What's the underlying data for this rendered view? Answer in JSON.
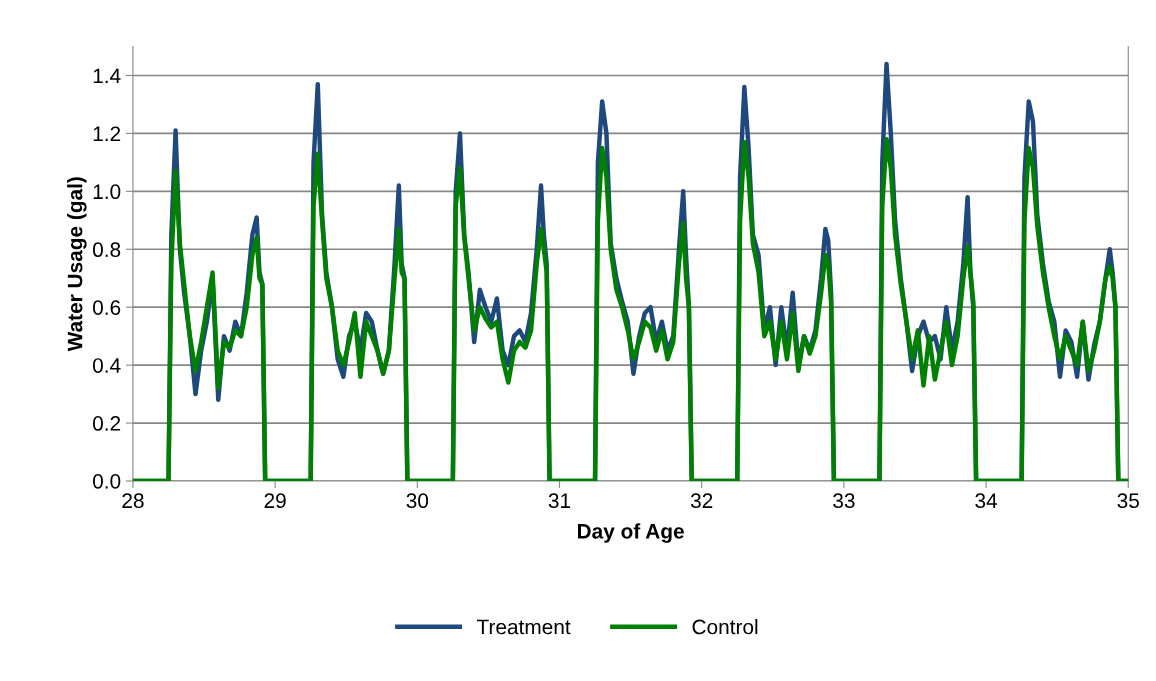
{
  "chart_data": {
    "type": "line",
    "xlabel": "Day of Age",
    "ylabel": "Water Usage (gal)",
    "x": [
      28,
      28.25,
      28.27,
      28.3,
      28.33,
      28.36,
      28.4,
      28.44,
      28.48,
      28.52,
      28.56,
      28.6,
      28.64,
      28.68,
      28.72,
      28.76,
      28.8,
      28.84,
      28.87,
      28.89,
      28.91,
      28.93,
      29.25,
      29.27,
      29.3,
      29.33,
      29.36,
      29.4,
      29.44,
      29.48,
      29.52,
      29.56,
      29.6,
      29.64,
      29.68,
      29.72,
      29.76,
      29.8,
      29.84,
      29.87,
      29.89,
      29.91,
      29.93,
      30.25,
      30.27,
      30.3,
      30.33,
      30.36,
      30.4,
      30.44,
      30.48,
      30.52,
      30.56,
      30.6,
      30.64,
      30.68,
      30.72,
      30.76,
      30.8,
      30.84,
      30.87,
      30.89,
      30.91,
      30.93,
      31.25,
      31.27,
      31.3,
      31.33,
      31.36,
      31.4,
      31.44,
      31.48,
      31.52,
      31.56,
      31.6,
      31.64,
      31.68,
      31.72,
      31.76,
      31.8,
      31.84,
      31.87,
      31.89,
      31.91,
      31.93,
      32.25,
      32.27,
      32.3,
      32.33,
      32.36,
      32.4,
      32.44,
      32.48,
      32.52,
      32.56,
      32.6,
      32.64,
      32.68,
      32.72,
      32.76,
      32.8,
      32.84,
      32.87,
      32.89,
      32.91,
      32.93,
      33.25,
      33.27,
      33.3,
      33.33,
      33.36,
      33.4,
      33.44,
      33.48,
      33.52,
      33.56,
      33.6,
      33.64,
      33.68,
      33.72,
      33.76,
      33.8,
      33.84,
      33.87,
      33.89,
      33.91,
      33.93,
      34.25,
      34.27,
      34.3,
      34.33,
      34.36,
      34.4,
      34.44,
      34.48,
      34.52,
      34.56,
      34.6,
      34.64,
      34.68,
      34.72,
      34.76,
      34.8,
      34.84,
      34.87,
      34.89,
      34.91,
      34.93,
      35
    ],
    "series": [
      {
        "name": "Treatment",
        "color": "#1f497d",
        "values": [
          0,
          0,
          0.85,
          1.21,
          0.8,
          0.65,
          0.5,
          0.3,
          0.45,
          0.55,
          0.7,
          0.28,
          0.5,
          0.45,
          0.55,
          0.5,
          0.65,
          0.85,
          0.91,
          0.72,
          0.68,
          0,
          0,
          1.1,
          1.37,
          0.92,
          0.72,
          0.6,
          0.42,
          0.36,
          0.5,
          0.55,
          0.45,
          0.58,
          0.55,
          0.45,
          0.37,
          0.45,
          0.75,
          1.02,
          0.75,
          0.7,
          0,
          0,
          1.0,
          1.2,
          0.85,
          0.72,
          0.48,
          0.66,
          0.6,
          0.55,
          0.63,
          0.45,
          0.4,
          0.5,
          0.52,
          0.48,
          0.58,
          0.8,
          1.02,
          0.85,
          0.75,
          0,
          0,
          1.1,
          1.31,
          1.2,
          0.82,
          0.7,
          0.62,
          0.55,
          0.37,
          0.5,
          0.58,
          0.6,
          0.48,
          0.55,
          0.45,
          0.5,
          0.8,
          1.0,
          0.78,
          0.6,
          0,
          0,
          1.05,
          1.36,
          1.15,
          0.85,
          0.78,
          0.52,
          0.6,
          0.4,
          0.6,
          0.45,
          0.65,
          0.4,
          0.5,
          0.45,
          0.52,
          0.7,
          0.87,
          0.83,
          0.65,
          0,
          0,
          1.1,
          1.44,
          1.2,
          0.9,
          0.7,
          0.55,
          0.38,
          0.5,
          0.55,
          0.48,
          0.5,
          0.42,
          0.6,
          0.45,
          0.55,
          0.75,
          0.98,
          0.72,
          0.6,
          0,
          0,
          1.05,
          1.31,
          1.24,
          0.92,
          0.75,
          0.62,
          0.55,
          0.36,
          0.52,
          0.48,
          0.36,
          0.55,
          0.35,
          0.47,
          0.55,
          0.7,
          0.8,
          0.72,
          0.6,
          0,
          0
        ]
      },
      {
        "name": "Control",
        "color": "#008000",
        "values": [
          0,
          0,
          0.75,
          1.07,
          0.82,
          0.68,
          0.5,
          0.38,
          0.48,
          0.6,
          0.72,
          0.32,
          0.48,
          0.46,
          0.52,
          0.5,
          0.6,
          0.78,
          0.84,
          0.7,
          0.68,
          0,
          0,
          0.95,
          1.13,
          0.9,
          0.7,
          0.6,
          0.45,
          0.4,
          0.48,
          0.58,
          0.36,
          0.55,
          0.5,
          0.45,
          0.37,
          0.45,
          0.7,
          0.87,
          0.72,
          0.7,
          0,
          0,
          0.95,
          1.08,
          0.84,
          0.7,
          0.52,
          0.6,
          0.56,
          0.53,
          0.55,
          0.42,
          0.34,
          0.45,
          0.48,
          0.46,
          0.52,
          0.75,
          0.87,
          0.8,
          0.72,
          0,
          0,
          0.9,
          1.15,
          1.05,
          0.8,
          0.66,
          0.6,
          0.52,
          0.42,
          0.48,
          0.55,
          0.53,
          0.45,
          0.52,
          0.42,
          0.48,
          0.75,
          0.89,
          0.7,
          0.6,
          0,
          0,
          0.9,
          1.17,
          1.05,
          0.82,
          0.72,
          0.5,
          0.55,
          0.42,
          0.55,
          0.42,
          0.58,
          0.38,
          0.5,
          0.44,
          0.5,
          0.65,
          0.78,
          0.75,
          0.62,
          0,
          0,
          0.95,
          1.18,
          1.08,
          0.85,
          0.68,
          0.55,
          0.42,
          0.52,
          0.33,
          0.5,
          0.35,
          0.45,
          0.55,
          0.4,
          0.5,
          0.7,
          0.81,
          0.72,
          0.62,
          0,
          0,
          0.9,
          1.15,
          1.08,
          0.88,
          0.72,
          0.6,
          0.5,
          0.42,
          0.5,
          0.45,
          0.4,
          0.55,
          0.38,
          0.45,
          0.55,
          0.7,
          0.74,
          0.7,
          0.6,
          0,
          0
        ]
      }
    ],
    "xlim": [
      28,
      35
    ],
    "xticks": [
      28,
      29,
      30,
      31,
      32,
      33,
      34,
      35
    ],
    "ylim": [
      0,
      1.5
    ],
    "yticks": [
      {
        "value": 0,
        "label": "0.0"
      },
      0.2,
      0.4,
      0.6,
      0.8,
      {
        "value": 1,
        "label": "1.0"
      },
      1.2,
      1.4
    ],
    "grid": "y",
    "legend": "bottom",
    "line_style": "solid"
  }
}
